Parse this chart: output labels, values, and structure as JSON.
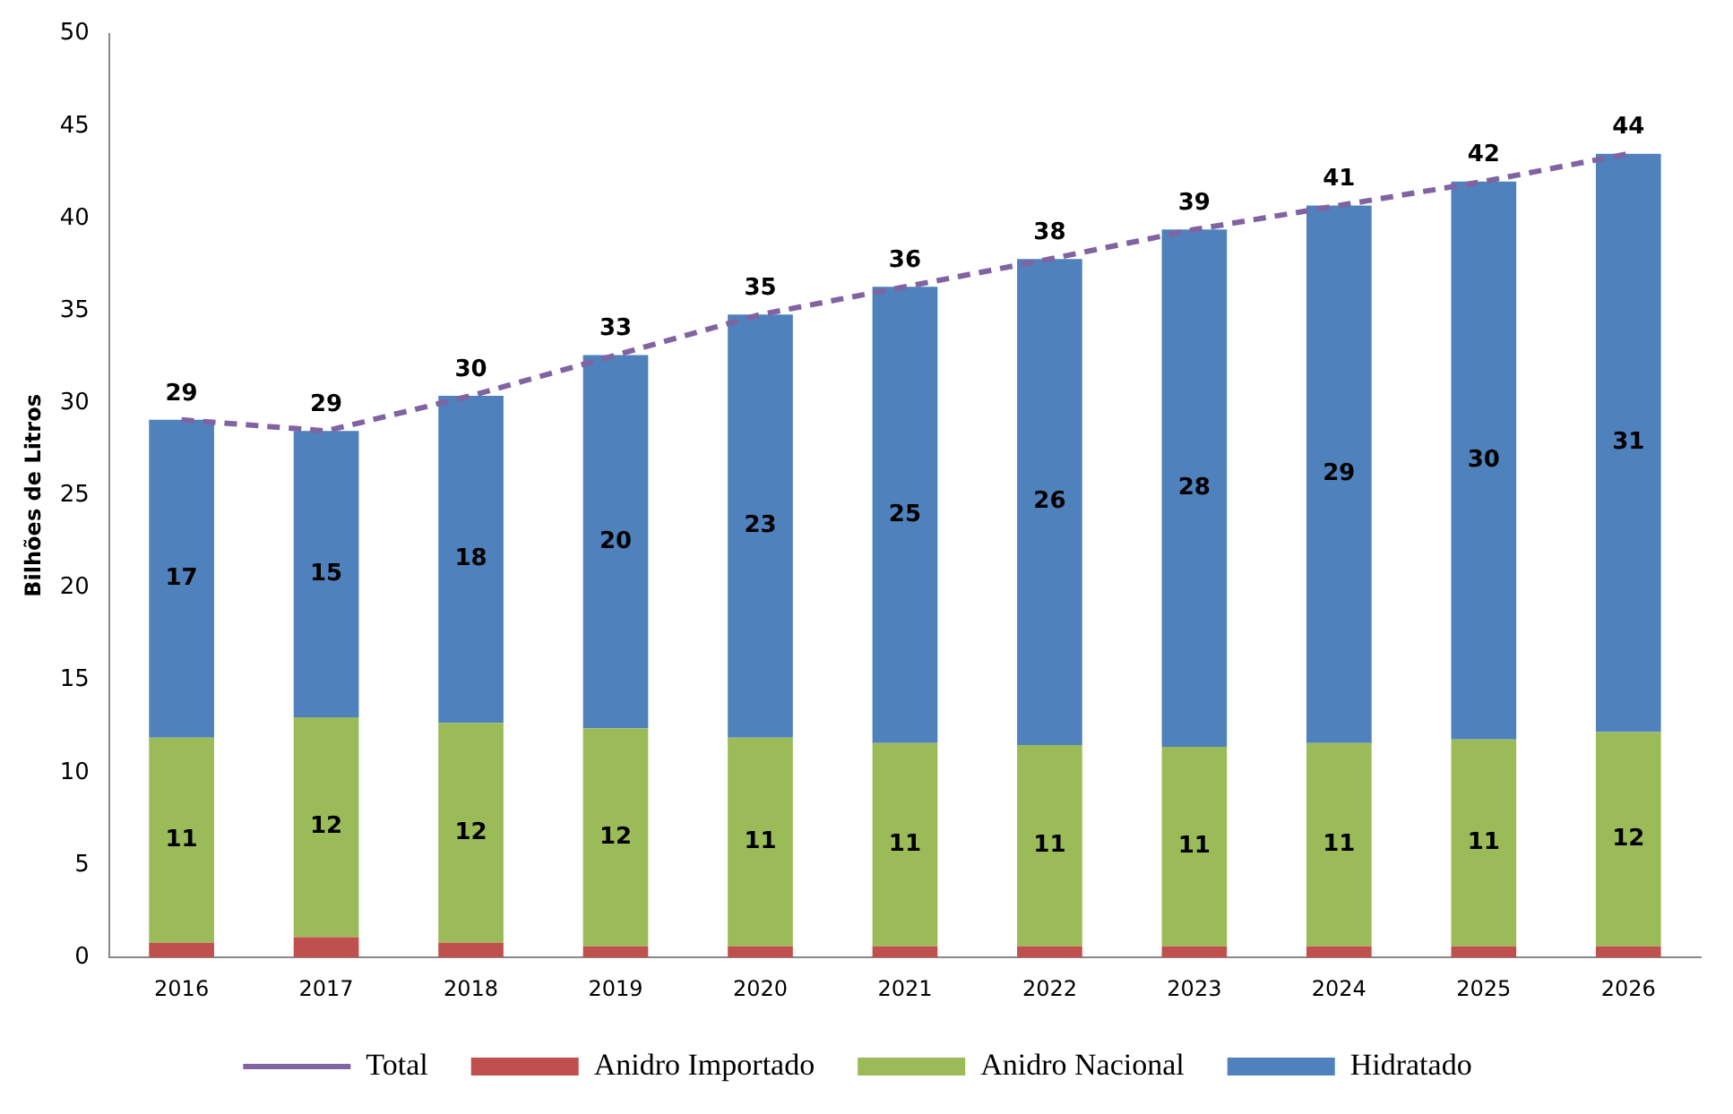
{
  "chart_data": {
    "type": "bar",
    "stacked": true,
    "ylabel": "Bilhões de Litros",
    "categories": [
      "2016",
      "2017",
      "2018",
      "2019",
      "2020",
      "2021",
      "2022",
      "2023",
      "2024",
      "2025",
      "2026"
    ],
    "series": [
      {
        "name": "Anidro Importado",
        "color": "#c0504d",
        "values": [
          0.8,
          1.1,
          0.8,
          0.6,
          0.6,
          0.6,
          0.6,
          0.6,
          0.6,
          0.6,
          0.6
        ]
      },
      {
        "name": "Anidro Nacional",
        "color": "#9bbb59",
        "values": [
          11.1,
          11.9,
          11.9,
          11.8,
          11.3,
          11.0,
          10.9,
          10.8,
          11.0,
          11.2,
          11.6
        ],
        "value_labels": [
          "11",
          "12",
          "12",
          "12",
          "11",
          "11",
          "11",
          "11",
          "11",
          "11",
          "12"
        ]
      },
      {
        "name": "Hidratado",
        "color": "#4f81bd",
        "values": [
          17.2,
          15.5,
          17.7,
          20.2,
          22.9,
          24.7,
          26.3,
          28.0,
          29.1,
          30.2,
          31.3
        ],
        "value_labels": [
          "17",
          "15",
          "18",
          "20",
          "23",
          "25",
          "26",
          "28",
          "29",
          "30",
          "31"
        ]
      },
      {
        "name": "Total",
        "type": "line",
        "color": "#8064a2",
        "line_style": "dashed",
        "marker": "none",
        "values": [
          29.1,
          28.5,
          30.4,
          32.6,
          34.8,
          36.3,
          37.8,
          39.4,
          40.7,
          42.0,
          43.5
        ],
        "value_labels": [
          "29",
          "29",
          "30",
          "33",
          "35",
          "36",
          "38",
          "39",
          "41",
          "42",
          "44"
        ]
      }
    ],
    "ylim": [
      0,
      50
    ],
    "yticks": [
      0,
      5,
      10,
      15,
      20,
      25,
      30,
      35,
      40,
      45,
      50
    ],
    "grid": false,
    "legend": "bottom"
  }
}
